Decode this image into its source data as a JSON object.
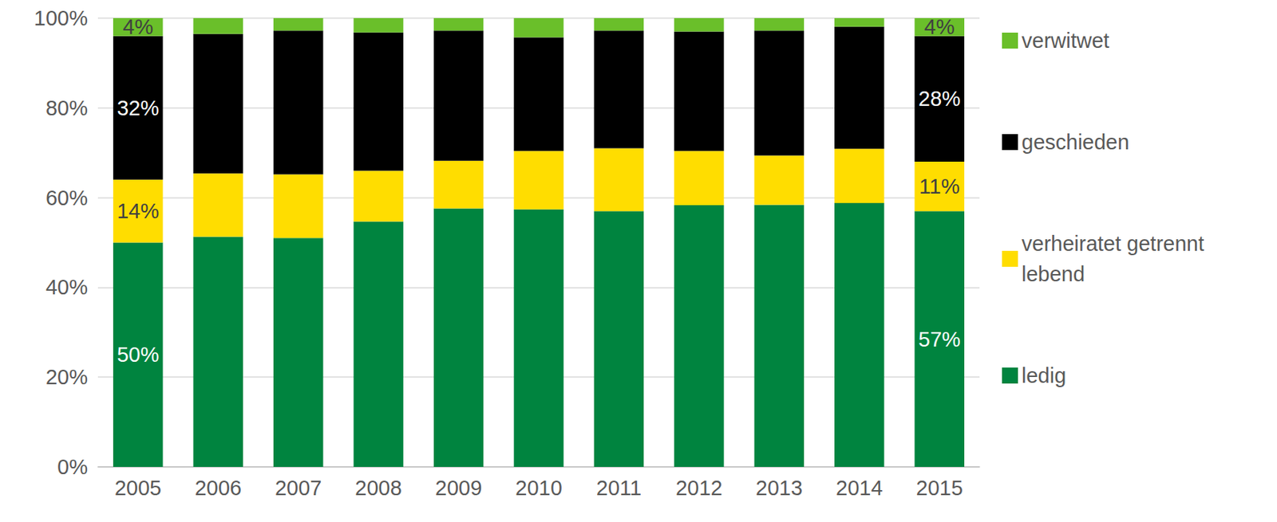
{
  "chart_data": {
    "type": "bar",
    "stacked": true,
    "grid": true,
    "legend": "right",
    "data_labels": true,
    "categories": [
      "2005",
      "2006",
      "2007",
      "2008",
      "2009",
      "2010",
      "2011",
      "2012",
      "2013",
      "2014",
      "2015"
    ],
    "ylim": [
      0,
      100
    ],
    "yticks": [
      {
        "value": 0,
        "label": "0%"
      },
      {
        "value": 20,
        "label": "20%"
      },
      {
        "value": 40,
        "label": "40%"
      },
      {
        "value": 60,
        "label": "60%"
      },
      {
        "value": 80,
        "label": "80%"
      },
      {
        "value": 100,
        "label": "100%"
      }
    ],
    "series": [
      {
        "name": "ledig",
        "color": "#00843f",
        "values": [
          50,
          51.3,
          51,
          54.7,
          57.6,
          57.4,
          57,
          58.3,
          58.4,
          58.8,
          57
        ],
        "value_labels": [
          "50%",
          null,
          null,
          null,
          null,
          null,
          null,
          null,
          null,
          null,
          "57%"
        ]
      },
      {
        "name": "verheiratet getrennt lebend",
        "color": "#ffdd00",
        "values": [
          14,
          14.1,
          14.2,
          11.3,
          10.6,
          13,
          14,
          12.1,
          11,
          12.1,
          11
        ],
        "value_labels": [
          "14%",
          null,
          null,
          null,
          null,
          null,
          null,
          null,
          null,
          null,
          "11%"
        ]
      },
      {
        "name": "geschieden",
        "color": "#000000",
        "values": [
          32,
          31.1,
          32,
          30.8,
          29,
          25.3,
          26.2,
          26.6,
          27.8,
          27.2,
          28
        ],
        "value_labels": [
          "32%",
          null,
          null,
          null,
          null,
          null,
          null,
          null,
          null,
          null,
          "28%"
        ]
      },
      {
        "name": "verwitwet",
        "color": "#6abf2a",
        "values": [
          4,
          3.5,
          2.8,
          3.2,
          2.8,
          4.3,
          2.8,
          3,
          2.8,
          1.9,
          4
        ],
        "value_labels": [
          "4%",
          null,
          null,
          null,
          null,
          null,
          null,
          null,
          null,
          null,
          "4%"
        ]
      }
    ]
  }
}
